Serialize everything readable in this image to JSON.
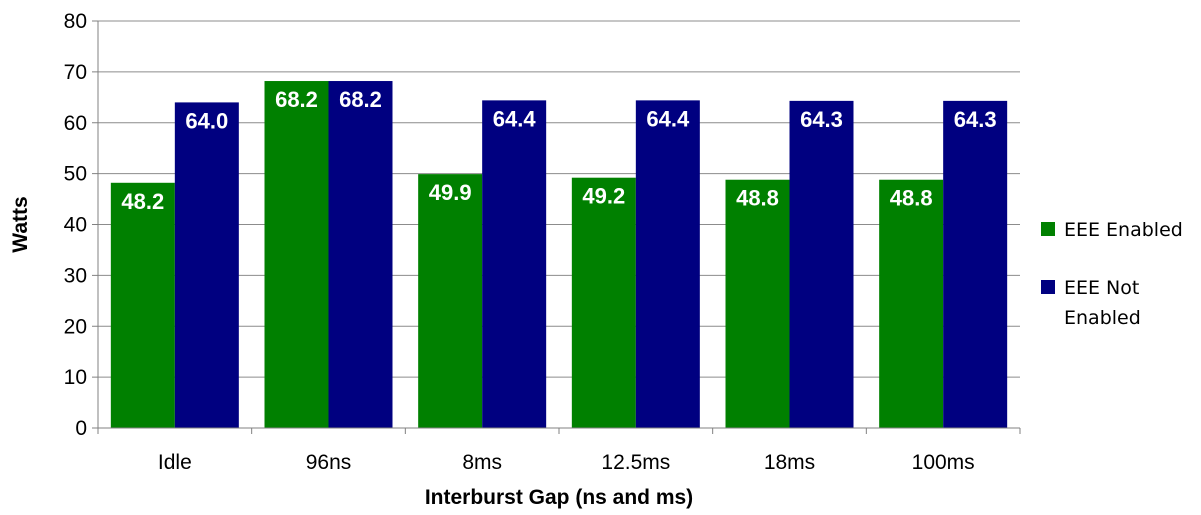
{
  "chart_data": {
    "type": "bar",
    "title": "",
    "xlabel": "Interburst Gap (ns and ms)",
    "ylabel": "Watts",
    "ylim": [
      0,
      80
    ],
    "yticks": [
      0,
      10,
      20,
      30,
      40,
      50,
      60,
      70,
      80
    ],
    "grid": true,
    "legend_position": "right",
    "categories": [
      "Idle",
      "96ns",
      "8ms",
      "12.5ms",
      "18ms",
      "100ms"
    ],
    "series": [
      {
        "name": "EEE Enabled",
        "legend_lines": [
          "EEE Enabled"
        ],
        "color": "#008000",
        "values": [
          48.2,
          68.2,
          49.9,
          49.2,
          48.8,
          48.8
        ],
        "labels": [
          "48.2",
          "68.2",
          "49.9",
          "49.2",
          "48.8",
          "48.8"
        ]
      },
      {
        "name": "EEE Not Enabled",
        "legend_lines": [
          "EEE Not",
          "Enabled"
        ],
        "color": "#000080",
        "values": [
          64.0,
          68.2,
          64.4,
          64.4,
          64.3,
          64.3
        ],
        "labels": [
          "64.0",
          "68.2",
          "64.4",
          "64.4",
          "64.3",
          "64.3"
        ]
      }
    ]
  }
}
